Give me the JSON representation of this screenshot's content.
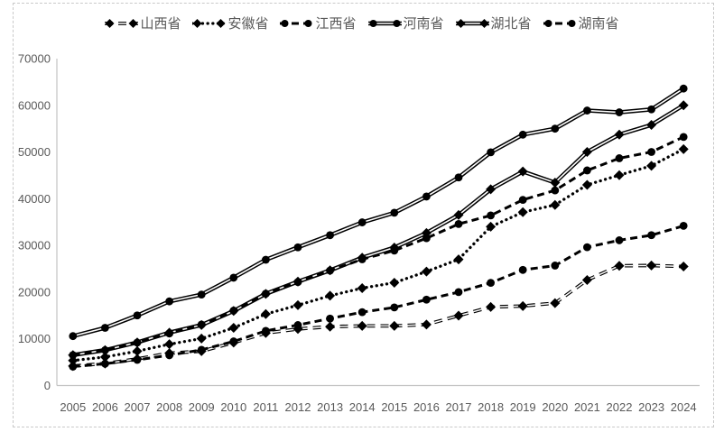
{
  "chart_data": {
    "type": "line",
    "title": "",
    "xlabel": "",
    "ylabel": "",
    "x": [
      "2005",
      "2006",
      "2007",
      "2008",
      "2009",
      "2010",
      "2011",
      "2012",
      "2013",
      "2014",
      "2015",
      "2016",
      "2017",
      "2018",
      "2019",
      "2020",
      "2021",
      "2022",
      "2023",
      "2024"
    ],
    "ylim": [
      0,
      70000
    ],
    "ytick_step": 10000,
    "yticks": [
      "0",
      "10000",
      "20000",
      "30000",
      "40000",
      "50000",
      "60000",
      "70000"
    ],
    "grid": false,
    "legend_position": "top-center",
    "series": [
      {
        "name": "山西省",
        "marker": "diamond",
        "line_style": "dashed-double",
        "values": [
          4180,
          4715,
          5697,
          6938,
          7358,
          9201,
          11238,
          12113,
          12603,
          12762,
          12766,
          13050,
          14973,
          16818,
          17027,
          17652,
          22590,
          25643,
          25698,
          25494
        ]
      },
      {
        "name": "安徽省",
        "marker": "diamond",
        "line_style": "dotted",
        "values": [
          5350,
          6112,
          7360,
          8852,
          10063,
          12359,
          15300,
          17212,
          19229,
          20849,
          22006,
          24408,
          27018,
          34010,
          37114,
          38681,
          42959,
          45045,
          47050,
          50625
        ]
      },
      {
        "name": "江西省",
        "marker": "circle",
        "line_style": "dashed",
        "values": [
          4057,
          4671,
          5500,
          6480,
          7655,
          9451,
          11703,
          12949,
          14339,
          15715,
          16724,
          18388,
          20006,
          21985,
          24758,
          25692,
          29620,
          31100,
          32200,
          34203
        ]
      },
      {
        "name": "河南省",
        "marker": "circle",
        "line_style": "solid-double",
        "values": [
          10587,
          12363,
          15012,
          18019,
          19480,
          23092,
          26931,
          29599,
          32191,
          34938,
          37002,
          40472,
          44553,
          49936,
          53717,
          54997,
          58887,
          58500,
          59132,
          63590
        ]
      },
      {
        "name": "湖北省",
        "marker": "diamond",
        "line_style": "solid-double",
        "values": [
          6520,
          7581,
          9231,
          11331,
          12961,
          15968,
          19632,
          22250,
          24668,
          27379,
          29550,
          32665,
          36523,
          42022,
          45828,
          43443,
          50013,
          53735,
          55804,
          60013
        ]
      },
      {
        "name": "湖南省",
        "marker": "circle",
        "line_style": "dashed",
        "values": [
          6511,
          7569,
          9200,
          11156,
          13060,
          16038,
          19670,
          22154,
          24622,
          27037,
          28902,
          31551,
          34590,
          36426,
          39752,
          41781,
          46063,
          48670,
          50013,
          53231
        ]
      }
    ],
    "colors": {
      "series_line": "#000000",
      "axis_line": "#c3c3c3",
      "tick_label": "#595959",
      "legend_label": "#595959",
      "background": "#ffffff",
      "frame_border": "#c9c9c9"
    }
  }
}
